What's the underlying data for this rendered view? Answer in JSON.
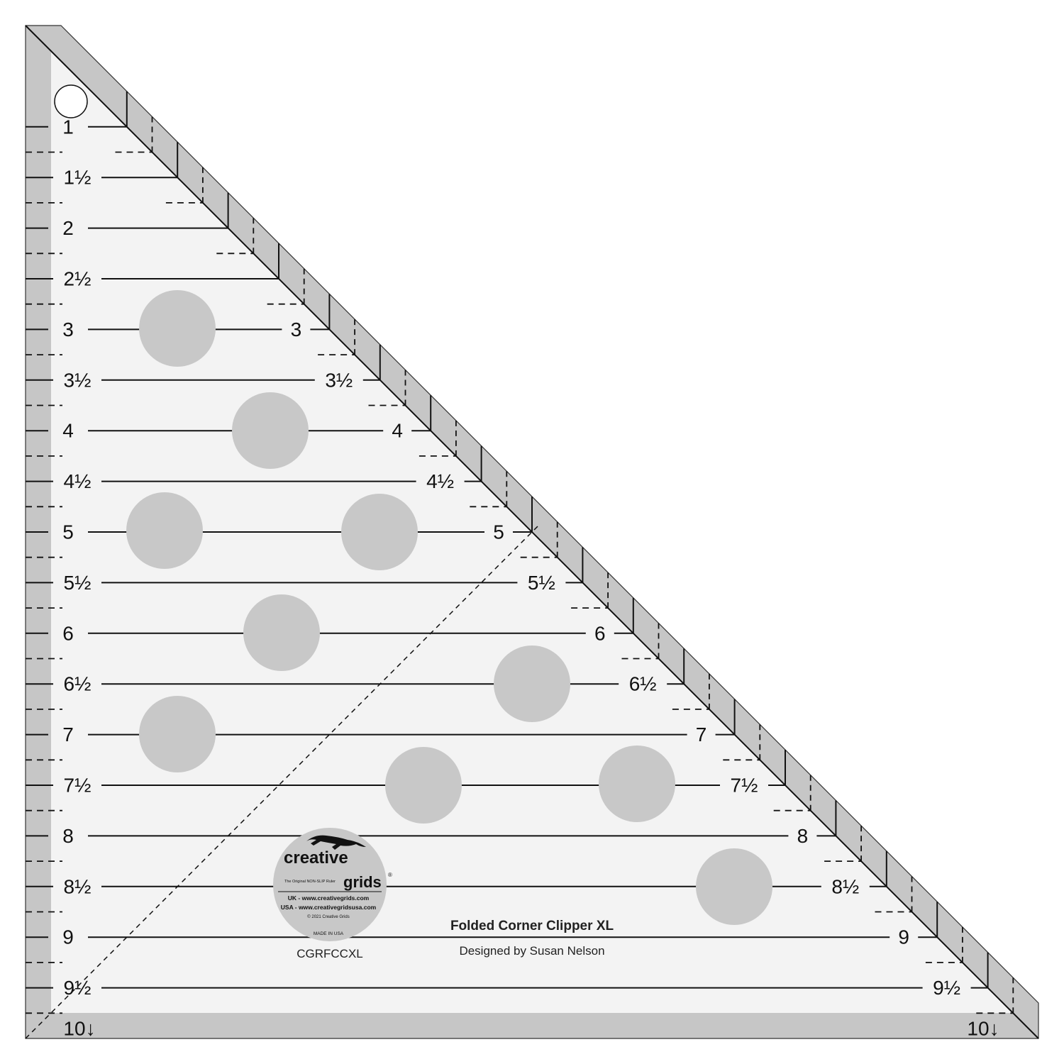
{
  "product": {
    "name": "Folded Corner Clipper XL",
    "designer": "Designed by Susan Nelson",
    "sku": "CGRFCCXL"
  },
  "logo": {
    "brand_line1": "creative",
    "brand_line2": "grids",
    "registered": "®",
    "tagline": "The Original NON-SLIP Ruler",
    "uk_url": "UK - www.creativegrids.com",
    "usa_url": "USA - www.creativegridsusa.com",
    "copyright": "© 2021 Creative Grids",
    "made_in": "MADE IN USA"
  },
  "ruler": {
    "unit": "inch",
    "max": 10,
    "left_labels": [
      {
        "value": 1,
        "text": "1"
      },
      {
        "value": 1.5,
        "text": "1½"
      },
      {
        "value": 2,
        "text": "2"
      },
      {
        "value": 2.5,
        "text": "2½"
      },
      {
        "value": 3,
        "text": "3"
      },
      {
        "value": 3.5,
        "text": "3½"
      },
      {
        "value": 4,
        "text": "4"
      },
      {
        "value": 4.5,
        "text": "4½"
      },
      {
        "value": 5,
        "text": "5"
      },
      {
        "value": 5.5,
        "text": "5½"
      },
      {
        "value": 6,
        "text": "6"
      },
      {
        "value": 6.5,
        "text": "6½"
      },
      {
        "value": 7,
        "text": "7"
      },
      {
        "value": 7.5,
        "text": "7½"
      },
      {
        "value": 8,
        "text": "8"
      },
      {
        "value": 8.5,
        "text": "8½"
      },
      {
        "value": 9,
        "text": "9"
      },
      {
        "value": 9.5,
        "text": "9½"
      }
    ],
    "right_labels": [
      {
        "value": 3,
        "text": "3"
      },
      {
        "value": 3.5,
        "text": "3½"
      },
      {
        "value": 4,
        "text": "4"
      },
      {
        "value": 4.5,
        "text": "4½"
      },
      {
        "value": 5,
        "text": "5"
      },
      {
        "value": 5.5,
        "text": "5½"
      },
      {
        "value": 6,
        "text": "6"
      },
      {
        "value": 6.5,
        "text": "6½"
      },
      {
        "value": 7,
        "text": "7"
      },
      {
        "value": 7.5,
        "text": "7½"
      },
      {
        "value": 8,
        "text": "8"
      },
      {
        "value": 8.5,
        "text": "8½"
      },
      {
        "value": 9,
        "text": "9"
      },
      {
        "value": 9.5,
        "text": "9½"
      }
    ],
    "bottom_left_label": "10↓",
    "bottom_right_label": "10↓"
  },
  "colors": {
    "band": "#c6c6c6",
    "surface": "#f3f3f3",
    "dots": "#c8c8c8",
    "lines": "#111111"
  }
}
